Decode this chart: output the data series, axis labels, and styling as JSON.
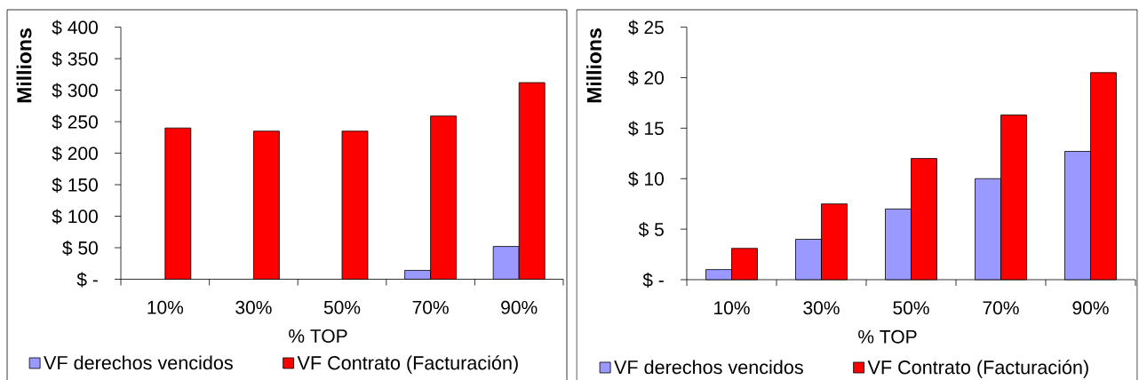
{
  "chart_data": [
    {
      "type": "bar",
      "xlabel": "% TOP",
      "ylabel": "Millions",
      "categories": [
        "10%",
        "30%",
        "50%",
        "70%",
        "90%"
      ],
      "series": [
        {
          "name": "VF derechos vencidos",
          "color": "#9999ff",
          "values": [
            null,
            null,
            null,
            14,
            52
          ]
        },
        {
          "name": "VF Contrato (Facturación)",
          "color": "#ff0000",
          "values": [
            240,
            235,
            235,
            259,
            312
          ]
        }
      ],
      "ylim": [
        0,
        400
      ],
      "yticks": [
        {
          "value": 0,
          "label": "$ -"
        },
        {
          "value": 50,
          "label": "$ 50"
        },
        {
          "value": 100,
          "label": "$ 100"
        },
        {
          "value": 150,
          "label": "$ 150"
        },
        {
          "value": 200,
          "label": "$ 200"
        },
        {
          "value": 250,
          "label": "$ 250"
        },
        {
          "value": 300,
          "label": "$ 300"
        },
        {
          "value": 350,
          "label": "$ 350"
        },
        {
          "value": 400,
          "label": "$ 400"
        }
      ],
      "legend": "bottom"
    },
    {
      "type": "bar",
      "xlabel": "% TOP",
      "ylabel": "Millions",
      "categories": [
        "10%",
        "30%",
        "50%",
        "70%",
        "90%"
      ],
      "series": [
        {
          "name": "VF derechos vencidos",
          "color": "#9999ff",
          "values": [
            1.0,
            4.0,
            7.0,
            10.0,
            12.7
          ]
        },
        {
          "name": "VF Contrato (Facturación)",
          "color": "#ff0000",
          "values": [
            3.1,
            7.5,
            12.0,
            16.3,
            20.5
          ]
        }
      ],
      "ylim": [
        0,
        25
      ],
      "yticks": [
        {
          "value": 0,
          "label": "$ -"
        },
        {
          "value": 5,
          "label": "$ 5"
        },
        {
          "value": 10,
          "label": "$ 10"
        },
        {
          "value": 15,
          "label": "$ 15"
        },
        {
          "value": 20,
          "label": "$ 20"
        },
        {
          "value": 25,
          "label": "$ 25"
        }
      ],
      "legend": "bottom"
    }
  ]
}
